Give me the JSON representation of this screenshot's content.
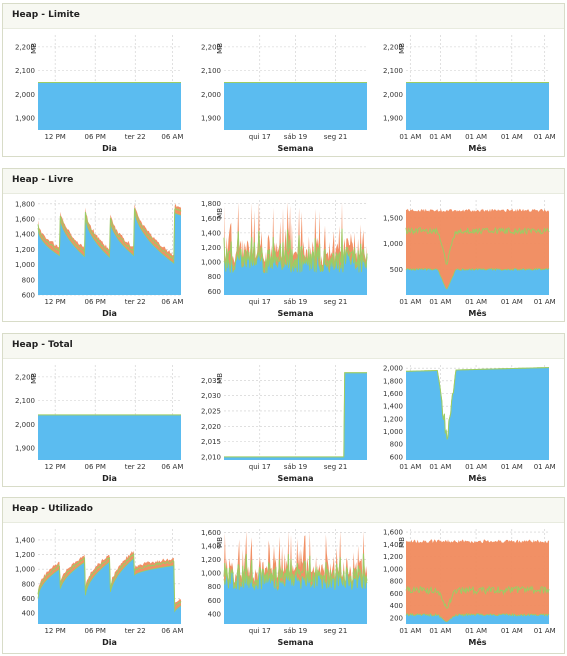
{
  "colors": {
    "used": "#5bbcf0",
    "band": "#f08a5d",
    "mid": "#9ccc65",
    "grid": "#cccccc"
  },
  "panels": [
    {
      "title": "Heap - Limite"
    },
    {
      "title": "Heap - Livre"
    },
    {
      "title": "Heap - Total"
    },
    {
      "title": "Heap - Utilizado"
    }
  ],
  "chart_data": [
    {
      "id": "limite-dia",
      "panel": 0,
      "col": 0,
      "type": "area",
      "ylabel": "MB",
      "xlabel": "Dia",
      "ylim": [
        1850,
        2250
      ],
      "yticks": [
        1900,
        2000,
        2100,
        2200
      ],
      "ytick_labels": [
        "1,900",
        "2,000",
        "2,100",
        "2,200"
      ],
      "xticks": [
        "12 PM",
        "06 PM",
        "ter 22",
        "06 AM"
      ],
      "xtick_pos": [
        0.12,
        0.4,
        0.68,
        0.94
      ],
      "shape": "flat",
      "series": [
        {
          "name": "",
          "value": 2050
        }
      ]
    },
    {
      "id": "limite-semana",
      "panel": 0,
      "col": 1,
      "type": "area",
      "ylabel": "MB",
      "xlabel": "Semana",
      "ylim": [
        1850,
        2250
      ],
      "yticks": [
        1900,
        2000,
        2100,
        2200
      ],
      "ytick_labels": [
        "1,900",
        "2,000",
        "2,100",
        "2,200"
      ],
      "xticks": [
        "qui 17",
        "sáb 19",
        "seg 21"
      ],
      "xtick_pos": [
        0.25,
        0.5,
        0.78
      ],
      "shape": "flat",
      "series": [
        {
          "name": "",
          "value": 2050
        }
      ]
    },
    {
      "id": "limite-mes",
      "panel": 0,
      "col": 2,
      "type": "area",
      "ylabel": "MB",
      "xlabel": "Mês",
      "ylim": [
        1850,
        2250
      ],
      "yticks": [
        1900,
        2000,
        2100,
        2200
      ],
      "ytick_labels": [
        "1,900",
        "2,000",
        "2,100",
        "2,200"
      ],
      "xticks": [
        "01 AM",
        "01 AM",
        "01 AM",
        "01 AM",
        "01 AM"
      ],
      "xtick_pos": [
        0.03,
        0.24,
        0.49,
        0.74,
        0.97
      ],
      "shape": "flat",
      "series": [
        {
          "name": "",
          "value": 2050
        }
      ]
    },
    {
      "id": "livre-dia",
      "panel": 1,
      "col": 0,
      "type": "area",
      "ylabel": "",
      "xlabel": "Dia",
      "ylim": [
        600,
        1850
      ],
      "yticks": [
        600,
        800,
        1000,
        1200,
        1400,
        1600,
        1800
      ],
      "ytick_labels": [
        "600",
        "800",
        "1,000",
        "1,200",
        "1,400",
        "1,600",
        "1,800"
      ],
      "xticks": [
        "12 PM",
        "06 PM",
        "ter 22",
        "06 AM"
      ],
      "xtick_pos": [
        0.12,
        0.4,
        0.68,
        0.94
      ],
      "shape": "sawdown",
      "params": {
        "cycles": [
          [
            0,
            0.15,
            1480,
            1120
          ],
          [
            0.15,
            0.33,
            1700,
            1100
          ],
          [
            0.33,
            0.5,
            1680,
            1100
          ],
          [
            0.5,
            0.67,
            1650,
            1120
          ],
          [
            0.67,
            0.95,
            1800,
            1020
          ],
          [
            0.95,
            1,
            1700,
            1650
          ]
        ]
      }
    },
    {
      "id": "livre-semana",
      "panel": 1,
      "col": 1,
      "type": "area",
      "ylabel": "MB",
      "xlabel": "Semana",
      "ylim": [
        550,
        1850
      ],
      "yticks": [
        600,
        800,
        1000,
        1200,
        1400,
        1600,
        1800
      ],
      "ytick_labels": [
        "600",
        "800",
        "1,000",
        "1,200",
        "1,400",
        "1,600",
        "1,800"
      ],
      "xticks": [
        "qui 17",
        "sáb 19",
        "seg 21"
      ],
      "xtick_pos": [
        0.25,
        0.5,
        0.78
      ],
      "shape": "noisy",
      "params": {
        "base": 1000,
        "amp": 700,
        "low": 650
      }
    },
    {
      "id": "livre-mes",
      "panel": 1,
      "col": 2,
      "type": "area",
      "ylabel": "",
      "xlabel": "Mês",
      "ylim": [
        0,
        1850
      ],
      "yticks": [
        500,
        1000,
        1500
      ],
      "ytick_labels": [
        "500",
        "1,000",
        "1,500"
      ],
      "xticks": [
        "01 AM",
        "01 AM",
        "01 AM",
        "01 AM",
        "01 AM"
      ],
      "xtick_pos": [
        0.03,
        0.24,
        0.49,
        0.74,
        0.97
      ],
      "shape": "bands",
      "params": {
        "low": 500,
        "mid": 1250,
        "high": 1650,
        "dip": [
          0.22,
          0.35
        ]
      }
    },
    {
      "id": "total-dia",
      "panel": 2,
      "col": 0,
      "type": "area",
      "ylabel": "MB",
      "xlabel": "Dia",
      "ylim": [
        1850,
        2250
      ],
      "yticks": [
        1900,
        2000,
        2100,
        2200
      ],
      "ytick_labels": [
        "1,900",
        "2,000",
        "2,100",
        "2,200"
      ],
      "xticks": [
        "12 PM",
        "06 PM",
        "ter 22",
        "06 AM"
      ],
      "xtick_pos": [
        0.12,
        0.4,
        0.68,
        0.94
      ],
      "shape": "flat",
      "series": [
        {
          "name": "",
          "value": 2040
        }
      ]
    },
    {
      "id": "total-semana",
      "panel": 2,
      "col": 1,
      "type": "area",
      "ylabel": "MB",
      "xlabel": "Semana",
      "ylim": [
        2009,
        2040
      ],
      "yticks": [
        2010,
        2015,
        2020,
        2025,
        2030,
        2035
      ],
      "ytick_labels": [
        "2,010",
        "2,015",
        "2,020",
        "2,025",
        "2,030",
        "2,035"
      ],
      "xticks": [
        "qui 17",
        "sáb 19",
        "seg 21"
      ],
      "xtick_pos": [
        0.25,
        0.5,
        0.78
      ],
      "shape": "step",
      "params": {
        "before": 2010,
        "after": 2037.5,
        "at": 0.84
      }
    },
    {
      "id": "total-mes",
      "panel": 2,
      "col": 2,
      "type": "area",
      "ylabel": "",
      "xlabel": "Mês",
      "ylim": [
        550,
        2050
      ],
      "yticks": [
        600,
        800,
        1000,
        1200,
        1400,
        1600,
        1800,
        2000
      ],
      "ytick_labels": [
        "600",
        "800",
        "1,000",
        "1,200",
        "1,400",
        "1,600",
        "1,800",
        "2,000"
      ],
      "xticks": [
        "01 AM",
        "01 AM",
        "01 AM",
        "01 AM",
        "01 AM"
      ],
      "xtick_pos": [
        0.03,
        0.24,
        0.49,
        0.74,
        0.97
      ],
      "shape": "dipflat",
      "params": {
        "level": 1950,
        "end": 2010,
        "dip": [
          0.22,
          0.35
        ],
        "dipmin": 700
      }
    },
    {
      "id": "util-dia",
      "panel": 3,
      "col": 0,
      "type": "area",
      "ylabel": "",
      "xlabel": "Dia",
      "ylim": [
        250,
        1550
      ],
      "yticks": [
        400,
        600,
        800,
        1000,
        1200,
        1400
      ],
      "ytick_labels": [
        "400",
        "600",
        "800",
        "1,000",
        "1,200",
        "1,400"
      ],
      "xticks": [
        "12 PM",
        "06 PM",
        "ter 22",
        "06 AM"
      ],
      "xtick_pos": [
        0.12,
        0.4,
        0.68,
        0.94
      ],
      "shape": "sawup",
      "params": {
        "cycles": [
          [
            0,
            0.15,
            600,
            1000
          ],
          [
            0.15,
            0.33,
            650,
            1100
          ],
          [
            0.33,
            0.5,
            600,
            1100
          ],
          [
            0.5,
            0.67,
            580,
            1150
          ],
          [
            0.67,
            0.95,
            900,
            1050
          ],
          [
            0.95,
            1,
            380,
            500
          ]
        ]
      }
    },
    {
      "id": "util-semana",
      "panel": 3,
      "col": 1,
      "type": "area",
      "ylabel": "MB",
      "xlabel": "Semana",
      "ylim": [
        250,
        1650
      ],
      "yticks": [
        400,
        600,
        800,
        1000,
        1200,
        1400,
        1600
      ],
      "ytick_labels": [
        "400",
        "600",
        "800",
        "1,000",
        "1,200",
        "1,400",
        "1,600"
      ],
      "xticks": [
        "qui 17",
        "sáb 19",
        "seg 21"
      ],
      "xtick_pos": [
        0.25,
        0.5,
        0.78
      ],
      "shape": "noisy",
      "params": {
        "base": 900,
        "amp": 650,
        "low": 400
      }
    },
    {
      "id": "util-mes",
      "panel": 3,
      "col": 2,
      "type": "area",
      "ylabel": "MB",
      "xlabel": "Mês",
      "ylim": [
        100,
        1650
      ],
      "yticks": [
        200,
        400,
        600,
        800,
        1000,
        1200,
        1400,
        1600
      ],
      "ytick_labels": [
        "200",
        "400",
        "600",
        "800",
        "1,000",
        "1,200",
        "1,400",
        "1,600"
      ],
      "xticks": [
        "01 AM",
        "01 AM",
        "01 AM",
        "01 AM",
        "01 AM"
      ],
      "xtick_pos": [
        0.03,
        0.24,
        0.49,
        0.74,
        0.97
      ],
      "shape": "bands",
      "params": {
        "low": 250,
        "mid": 650,
        "high": 1450,
        "dip": [
          0.22,
          0.35
        ]
      }
    }
  ]
}
